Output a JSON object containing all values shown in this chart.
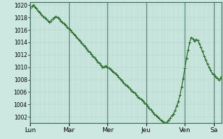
{
  "background_color": "#cce8e0",
  "plot_bg_color": "#cce8e0",
  "line_color": "#2d6e2d",
  "marker_color": "#2d6e2d",
  "grid_color_minor": "#b0d4cc",
  "grid_color_major": "#88bbaf",
  "day_sep_color": "#558877",
  "ylim": [
    1001.0,
    1020.5
  ],
  "yticks": [
    1002,
    1004,
    1006,
    1008,
    1010,
    1012,
    1014,
    1016,
    1018,
    1020
  ],
  "day_labels": [
    "Lun",
    "Mar",
    "Mer",
    "Jeu",
    "Ven",
    "Sa"
  ],
  "day_positions": [
    0,
    24,
    48,
    72,
    96,
    114
  ],
  "pressure_values": [
    1019.5,
    1019.8,
    1020.0,
    1019.7,
    1019.5,
    1019.0,
    1018.8,
    1018.5,
    1018.2,
    1018.0,
    1017.8,
    1017.5,
    1017.3,
    1017.5,
    1017.8,
    1018.0,
    1018.2,
    1018.0,
    1017.8,
    1017.5,
    1017.3,
    1017.0,
    1016.8,
    1016.5,
    1016.2,
    1016.0,
    1015.7,
    1015.4,
    1015.1,
    1014.8,
    1014.5,
    1014.2,
    1013.9,
    1013.6,
    1013.3,
    1013.0,
    1012.7,
    1012.4,
    1012.1,
    1011.8,
    1011.5,
    1011.2,
    1010.9,
    1010.6,
    1010.3,
    1010.0,
    1010.1,
    1010.2,
    1010.0,
    1009.8,
    1009.6,
    1009.4,
    1009.2,
    1009.0,
    1008.7,
    1008.4,
    1008.1,
    1007.8,
    1007.5,
    1007.2,
    1007.0,
    1006.8,
    1006.5,
    1006.2,
    1006.0,
    1005.8,
    1005.5,
    1005.2,
    1005.0,
    1004.8,
    1004.6,
    1004.3,
    1004.0,
    1003.7,
    1003.4,
    1003.1,
    1002.8,
    1002.5,
    1002.2,
    1002.0,
    1001.8,
    1001.5,
    1001.3,
    1001.1,
    1001.0,
    1001.2,
    1001.5,
    1001.8,
    1002.2,
    1002.5,
    1003.0,
    1003.8,
    1004.5,
    1005.5,
    1006.8,
    1008.2,
    1009.8,
    1011.4,
    1012.8,
    1014.0,
    1014.8,
    1014.6,
    1014.2,
    1014.5,
    1014.3,
    1013.8,
    1013.2,
    1012.5,
    1011.8,
    1011.2,
    1010.5,
    1010.0,
    1009.5,
    1009.0,
    1008.8,
    1008.5,
    1008.3,
    1008.0,
    1008.2,
    1008.5
  ]
}
